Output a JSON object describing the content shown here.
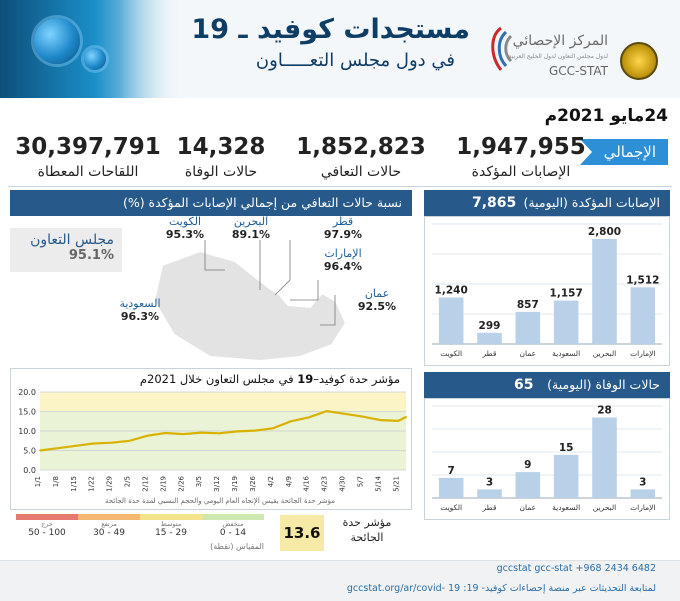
{
  "header": {
    "title": "مستجدات كوفيد ـ 19",
    "subtitle": "في دول مجلس التعـــــاون",
    "org_name_ar": "المركز الإحصائي",
    "org_subtitle_ar": "لدول مجلس التعاون لدول الخليج العربية",
    "org_name_en": "GCC-STAT"
  },
  "date": "24مايو 2021م",
  "totals": {
    "tag": "الإجمالي",
    "confirmed_value": "1,947,955",
    "confirmed_label": "الإصابات المؤكدة",
    "recovered_value": "1,852,823",
    "recovered_label": "حالات التعافي",
    "deaths_value": "14,328",
    "deaths_label": "حالات الوفاة",
    "vaccines_value": "30,397,791",
    "vaccines_label": "اللقاحات المعطاة"
  },
  "recovery_panel": {
    "title": "نسبة حالات التعافي من إجمالي الإصابات المؤكدة (%)",
    "gcc_label": "مجلس التعاون",
    "gcc_value": "95.1%",
    "countries": [
      {
        "name": "الكويت",
        "value": "95.3%"
      },
      {
        "name": "البحرين",
        "value": "89.1%"
      },
      {
        "name": "قطر",
        "value": "97.9%"
      },
      {
        "name": "الإمارات",
        "value": "96.4%"
      },
      {
        "name": "عمان",
        "value": "92.5%"
      },
      {
        "name": "السعودية",
        "value": "96.3%"
      }
    ]
  },
  "daily_cases_panel": {
    "title": "الإصابات المؤكدة (اليومية)",
    "total": "7,865"
  },
  "daily_deaths_panel": {
    "title": "حالات الوفاة (اليومية)",
    "total": "65"
  },
  "severity_panel": {
    "title_part1": "مؤشر حدة كوفيد–",
    "title_num": "19",
    "title_part2": " في مجلس التعاون خلال 2021م",
    "note": "مؤشر حدة الجائحة يقيس الإتجاه العام اليومي والحجم النسبي لمدة حدة الجائحة",
    "current_value": "13.6",
    "current_label": "مؤشر حدة الجائحة",
    "scale_caption": "المقياس (نقطة)",
    "scale": [
      {
        "name": "منخفض",
        "range": "0 - 14",
        "color": "#cfe8b0"
      },
      {
        "name": "متوسط",
        "range": "15 - 29",
        "color": "#f3e38a"
      },
      {
        "name": "مرتفع",
        "range": "30 - 49",
        "color": "#f5b870"
      },
      {
        "name": "حرج",
        "range": "50 - 100",
        "color": "#e57a6e"
      }
    ]
  },
  "footer": {
    "contact": "gccstat   gcc-stat   +968 2434 6482",
    "follow_text": "لمتابعة التحديثات عبر منصة إحصاءات كوفيد- 19:",
    "url": "gccstat.org/ar/covid- 19"
  },
  "colors": {
    "primary": "#27598a",
    "accent": "#2d8fd5",
    "bars": "#b8d0e8",
    "line": "#d9b200",
    "band_low": "#eaf3d6",
    "band_mid": "#fbf4c7"
  },
  "chart_data": [
    {
      "type": "bar",
      "title": "الإصابات المؤكدة (اليومية)",
      "categories": [
        "الكويت",
        "قطر",
        "عمان",
        "السعودية",
        "البحرين",
        "الإمارات"
      ],
      "values": [
        1240,
        299,
        857,
        1157,
        2800,
        1512
      ],
      "value_labels": [
        "1,240",
        "299",
        "857",
        "1,157",
        "2,800",
        "1,512"
      ],
      "ylim": [
        0,
        3200
      ],
      "grid": true
    },
    {
      "type": "bar",
      "title": "حالات الوفاة (اليومية)",
      "categories": [
        "الكويت",
        "قطر",
        "عمان",
        "السعودية",
        "البحرين",
        "الإمارات"
      ],
      "values": [
        7,
        3,
        9,
        15,
        28,
        3
      ],
      "value_labels": [
        "7",
        "3",
        "9",
        "15",
        "28",
        "3"
      ],
      "ylim": [
        0,
        32
      ],
      "grid": true
    },
    {
      "type": "line",
      "title": "مؤشر حدة كوفيد–19 في مجلس التعاون خلال 2021م",
      "x_ticks": [
        "1/1",
        "1/8",
        "1/15",
        "1/22",
        "1/29",
        "2/5",
        "2/12",
        "2/19",
        "2/26",
        "3/5",
        "3/12",
        "3/19",
        "3/26",
        "4/2",
        "4/9",
        "4/16",
        "4/23",
        "4/30",
        "5/7",
        "5/14",
        "5/21"
      ],
      "y_ticks": [
        "0.0",
        "5.0",
        "10.0",
        "15.0",
        "20.0"
      ],
      "ylim": [
        0,
        20
      ],
      "bands": [
        {
          "from": 0,
          "to": 15,
          "level": "low"
        },
        {
          "from": 15,
          "to": 20,
          "level": "mid"
        }
      ],
      "grid": true,
      "x": [
        "1/1",
        "1/8",
        "1/15",
        "1/22",
        "1/29",
        "2/5",
        "2/12",
        "2/19",
        "2/26",
        "3/5",
        "3/12",
        "3/19",
        "3/26",
        "4/2",
        "4/9",
        "4/16",
        "4/23",
        "4/30",
        "5/7",
        "5/14",
        "5/21",
        "5/24"
      ],
      "y": [
        5.0,
        5.6,
        6.2,
        6.8,
        7.0,
        7.5,
        8.8,
        9.5,
        9.2,
        9.6,
        9.4,
        9.9,
        10.1,
        10.7,
        12.5,
        13.5,
        15.1,
        14.4,
        13.7,
        12.8,
        12.6,
        13.6
      ]
    }
  ]
}
